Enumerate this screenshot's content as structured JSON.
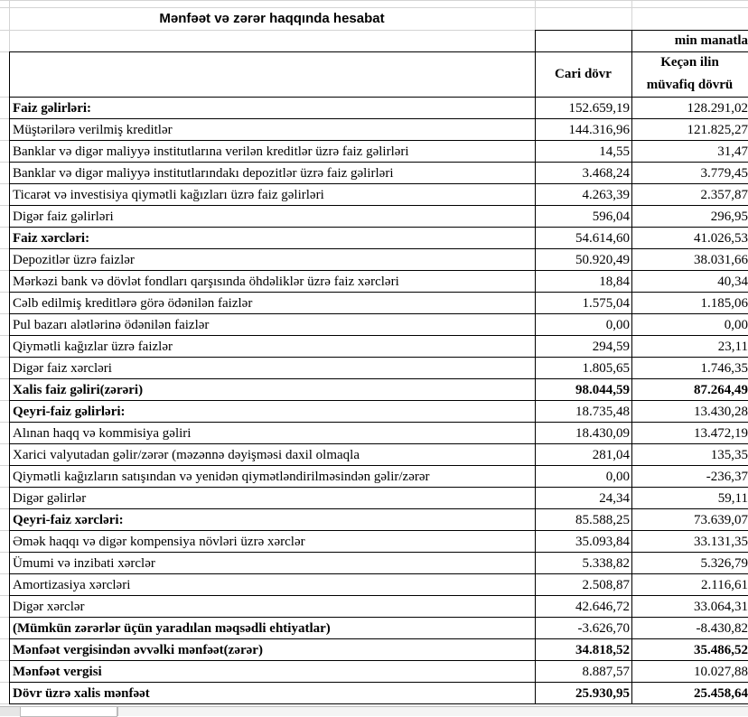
{
  "sheet": {
    "title": "Mənfəət və zərər haqqında hesabat",
    "unit": "min manatla",
    "header": {
      "current": "Cari dövr",
      "previous": [
        "Keçən ilin",
        "müvafiq dövrü"
      ]
    },
    "rows": [
      [
        "Faiz gəlirləri:",
        "152.659,19",
        "128.291,02"
      ],
      [
        "Müştərilərə verilmiş kreditlər",
        "144.316,96",
        "121.825,27"
      ],
      [
        "Banklar və digər maliyyə institutlarına verilən kreditlər üzrə faiz gəlirləri",
        "14,55",
        "31,47"
      ],
      [
        "Banklar və digər maliyyə institutlarındakı depozitlər üzrə faiz gəlirləri",
        "3.468,24",
        "3.779,45"
      ],
      [
        "Ticarət və investisiya qiymətli kağızları üzrə faiz gəlirləri",
        "4.263,39",
        "2.357,87"
      ],
      [
        "Digər faiz gəlirləri",
        "596,04",
        "296,95"
      ],
      [
        "Faiz xərcləri:",
        "54.614,60",
        "41.026,53"
      ],
      [
        "Depozitlər üzrə faizlər",
        "50.920,49",
        "38.031,66"
      ],
      [
        "Mərkəzi bank və dövlət fondları qarşısında öhdəliklər üzrə faiz xərcləri",
        "18,84",
        "40,34"
      ],
      [
        "Cəlb edilmiş kreditlərə görə ödənilən faizlər",
        "1.575,04",
        "1.185,06"
      ],
      [
        "Pul bazarı alətlərinə ödənilən faizlər",
        "0,00",
        "0,00"
      ],
      [
        "Qiymətli kağızlar üzrə faizlər",
        "294,59",
        "23,11"
      ],
      [
        "Digər faiz xərcləri",
        "1.805,65",
        "1.746,35"
      ],
      [
        "Xalis faiz gəliri(zərəri)",
        "98.044,59",
        "87.264,49"
      ],
      [
        "Qeyri-faiz gəlirləri:",
        "18.735,48",
        "13.430,28"
      ],
      [
        "Alınan haqq və kommisiya gəliri",
        "18.430,09",
        "13.472,19"
      ],
      [
        "Xarici valyutadan gəlir/zərər (məzənnə dəyişməsi daxil olmaqla",
        "281,04",
        "135,35"
      ],
      [
        "Qiymətli kağızların satışından və yenidən qiymətləndirilməsindən gəlir/zərər",
        "0,00",
        "-236,37"
      ],
      [
        "Digər gəlirlər",
        "24,34",
        "59,11"
      ],
      [
        "Qeyri-faiz xərcləri:",
        "85.588,25",
        "73.639,07"
      ],
      [
        "Əmək haqqı və digər kompensiya növləri üzrə xərclər",
        "35.093,84",
        "33.131,35"
      ],
      [
        "Ümumi və inzibati xərclər",
        "5.338,82",
        "5.326,79"
      ],
      [
        "Amortizasiya xərcləri",
        "2.508,87",
        "2.116,61"
      ],
      [
        "Digər xərclər",
        "42.646,72",
        "33.064,31"
      ],
      [
        "(Mümkün zərərlər üçün yaradılan məqsədli ehtiyatlar)",
        "-3.626,70",
        "-8.430,82"
      ],
      [
        "Mənfəət vergisindən əvvəlki mənfəət(zərər)",
        "34.818,52",
        "35.486,52"
      ],
      [
        "Mənfəət vergisi",
        "8.887,57",
        "10.027,88"
      ],
      [
        "Dövr üzrə xalis mənfəət",
        "25.930,95",
        "25.458,64"
      ]
    ]
  }
}
